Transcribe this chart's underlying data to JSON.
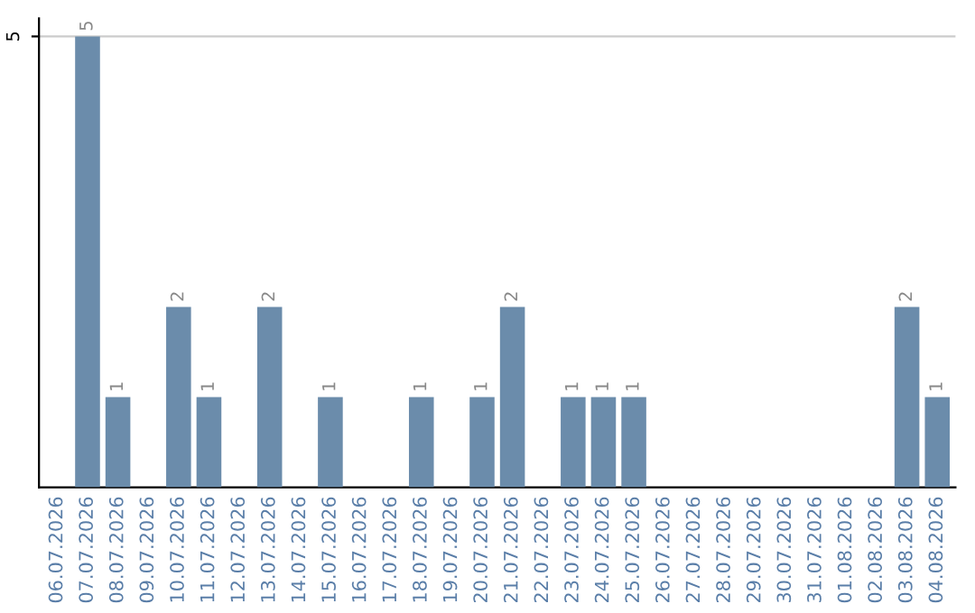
{
  "chart_data": {
    "type": "bar",
    "categories": [
      "06.07.2026",
      "07.07.2026",
      "08.07.2026",
      "09.07.2026",
      "10.07.2026",
      "11.07.2026",
      "12.07.2026",
      "13.07.2026",
      "14.07.2026",
      "15.07.2026",
      "16.07.2026",
      "17.07.2026",
      "18.07.2026",
      "19.07.2026",
      "20.07.2026",
      "21.07.2026",
      "22.07.2026",
      "23.07.2026",
      "24.07.2026",
      "25.07.2026",
      "26.07.2026",
      "27.07.2026",
      "28.07.2026",
      "29.07.2026",
      "30.07.2026",
      "31.07.2026",
      "01.08.2026",
      "02.08.2026",
      "03.08.2026",
      "04.08.2026"
    ],
    "values": [
      0,
      5,
      1,
      0,
      2,
      1,
      0,
      2,
      0,
      1,
      0,
      0,
      1,
      0,
      1,
      2,
      0,
      1,
      1,
      1,
      0,
      0,
      0,
      0,
      0,
      0,
      0,
      0,
      2,
      1
    ],
    "value_labels": [
      null,
      "5",
      "1",
      null,
      "2",
      "1",
      null,
      "2",
      null,
      "1",
      null,
      null,
      "1",
      null,
      "1",
      "2",
      null,
      "1",
      "1",
      "1",
      null,
      null,
      null,
      null,
      null,
      null,
      null,
      null,
      "2",
      "1"
    ],
    "color": "#6b8cab",
    "ylim": [
      0,
      5.2
    ],
    "yticks": [
      5
    ],
    "grid": "y",
    "legend": false
  }
}
